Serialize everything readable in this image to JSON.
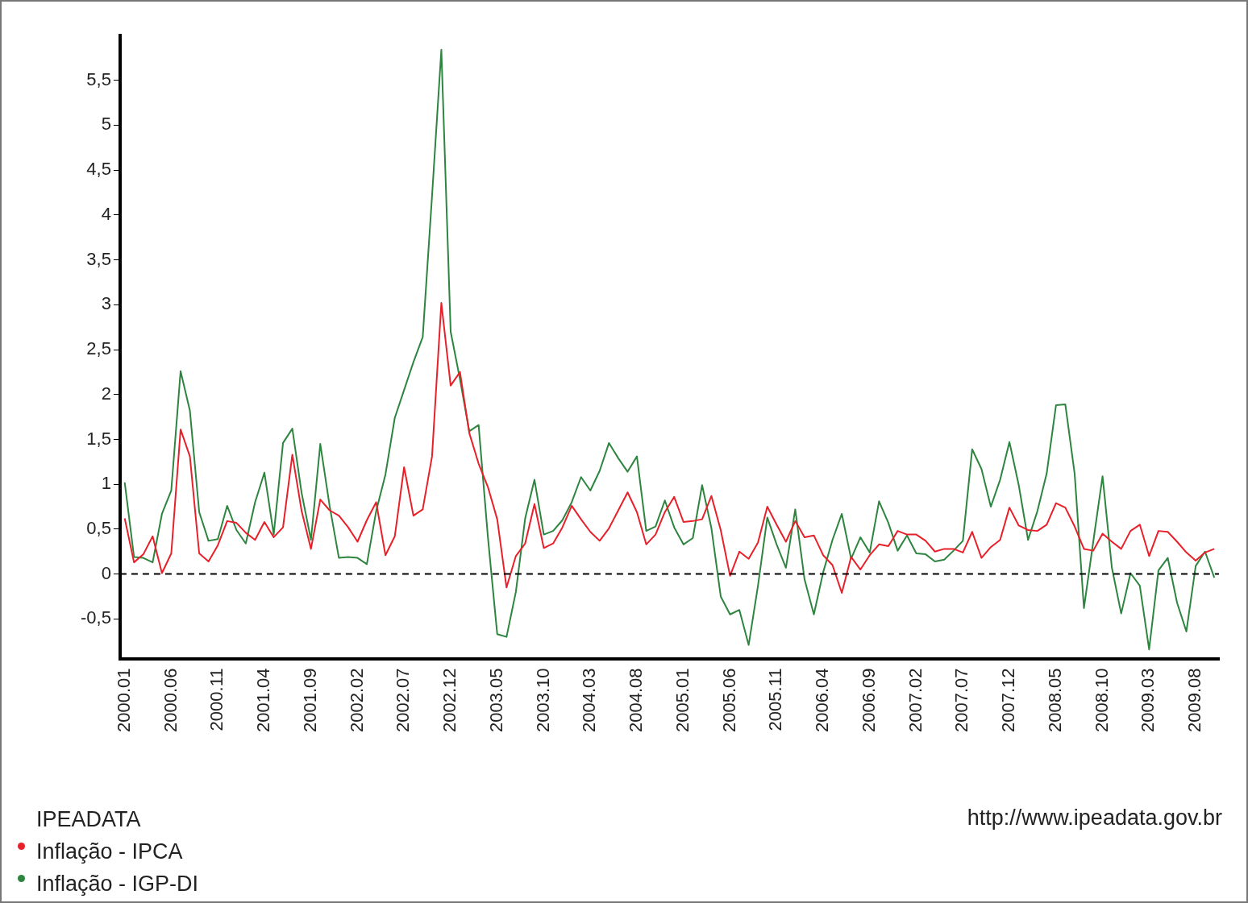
{
  "chart_data": {
    "type": "line",
    "categories": [
      "2000.01",
      null,
      null,
      null,
      null,
      "2000.06",
      null,
      null,
      null,
      null,
      "2000.11",
      null,
      null,
      null,
      null,
      "2001.04",
      null,
      null,
      null,
      null,
      "2001.09",
      null,
      null,
      null,
      null,
      "2002.02",
      null,
      null,
      null,
      null,
      "2002.07",
      null,
      null,
      null,
      null,
      "2002.12",
      null,
      null,
      null,
      null,
      "2003.05",
      null,
      null,
      null,
      null,
      "2003.10",
      null,
      null,
      null,
      null,
      "2004.03",
      null,
      null,
      null,
      null,
      "2004.08",
      null,
      null,
      null,
      null,
      "2005.01",
      null,
      null,
      null,
      null,
      "2005.06",
      null,
      null,
      null,
      null,
      "2005.11",
      null,
      null,
      null,
      null,
      "2006.04",
      null,
      null,
      null,
      null,
      "2006.09",
      null,
      null,
      null,
      null,
      "2007.02",
      null,
      null,
      null,
      null,
      "2007.07",
      null,
      null,
      null,
      null,
      "2007.12",
      null,
      null,
      null,
      null,
      "2008.05",
      null,
      null,
      null,
      null,
      "2008.10",
      null,
      null,
      null,
      null,
      "2009.03",
      null,
      null,
      null,
      null,
      "2009.08",
      null,
      null
    ],
    "series": [
      {
        "name": "Inflação - IPCA",
        "color": "#e8202a",
        "values": [
          0.62,
          0.13,
          0.22,
          0.42,
          0.01,
          0.23,
          1.61,
          1.31,
          0.23,
          0.14,
          0.32,
          0.59,
          0.57,
          0.46,
          0.38,
          0.58,
          0.41,
          0.52,
          1.33,
          0.7,
          0.28,
          0.83,
          0.71,
          0.65,
          0.52,
          0.36,
          0.6,
          0.8,
          0.21,
          0.42,
          1.19,
          0.65,
          0.72,
          1.31,
          3.02,
          2.1,
          2.25,
          1.57,
          1.23,
          0.97,
          0.61,
          -0.15,
          0.2,
          0.34,
          0.78,
          0.29,
          0.34,
          0.52,
          0.76,
          0.61,
          0.47,
          0.37,
          0.51,
          0.71,
          0.91,
          0.69,
          0.33,
          0.44,
          0.69,
          0.86,
          0.58,
          0.59,
          0.61,
          0.87,
          0.49,
          -0.02,
          0.25,
          0.17,
          0.35,
          0.75,
          0.55,
          0.36,
          0.59,
          0.41,
          0.43,
          0.21,
          0.1,
          -0.21,
          0.19,
          0.05,
          0.21,
          0.33,
          0.31,
          0.48,
          0.44,
          0.44,
          0.37,
          0.25,
          0.28,
          0.28,
          0.24,
          0.47,
          0.18,
          0.3,
          0.38,
          0.74,
          0.54,
          0.49,
          0.48,
          0.55,
          0.79,
          0.74,
          0.53,
          0.28,
          0.26,
          0.45,
          0.36,
          0.28,
          0.48,
          0.55,
          0.2,
          0.48,
          0.47,
          0.36,
          0.24,
          0.15,
          0.24,
          0.28
        ]
      },
      {
        "name": "Inflação - IGP-DI",
        "color": "#2e8540",
        "values": [
          1.02,
          0.19,
          0.18,
          0.13,
          0.67,
          0.93,
          2.26,
          1.82,
          0.69,
          0.37,
          0.39,
          0.76,
          0.49,
          0.34,
          0.8,
          1.13,
          0.44,
          1.46,
          1.62,
          0.9,
          0.38,
          1.45,
          0.76,
          0.18,
          0.19,
          0.18,
          0.11,
          0.7,
          1.11,
          1.74,
          2.05,
          2.36,
          2.64,
          4.21,
          5.84,
          2.7,
          2.17,
          1.59,
          1.66,
          0.41,
          -0.67,
          -0.7,
          -0.2,
          0.62,
          1.05,
          0.44,
          0.48,
          0.6,
          0.8,
          1.08,
          0.93,
          1.15,
          1.46,
          1.29,
          1.14,
          1.31,
          0.48,
          0.53,
          0.82,
          0.52,
          0.33,
          0.4,
          0.99,
          0.51,
          -0.25,
          -0.45,
          -0.4,
          -0.79,
          -0.13,
          0.63,
          0.33,
          0.07,
          0.72,
          -0.06,
          -0.45,
          0.02,
          0.38,
          0.67,
          0.17,
          0.41,
          0.24,
          0.81,
          0.57,
          0.26,
          0.43,
          0.23,
          0.22,
          0.14,
          0.16,
          0.26,
          0.37,
          1.39,
          1.17,
          0.75,
          1.05,
          1.47,
          0.99,
          0.38,
          0.7,
          1.12,
          1.88,
          1.89,
          1.12,
          -0.38,
          0.36,
          1.09,
          0.07,
          -0.44,
          0.01,
          -0.13,
          -0.84,
          0.04,
          0.18,
          -0.32,
          -0.64,
          0.09,
          0.25,
          -0.04
        ]
      }
    ],
    "ylim": [
      -0.95,
      6
    ],
    "yticks": [
      {
        "value": -0.5,
        "label": "-0,5"
      },
      0,
      {
        "value": 0.5,
        "label": "0,5"
      },
      1,
      {
        "value": 1.5,
        "label": "1,5"
      },
      2,
      {
        "value": 2.5,
        "label": "2,5"
      },
      3,
      {
        "value": 3.5,
        "label": "3,5"
      },
      4,
      {
        "value": 4.5,
        "label": "4,5"
      },
      5,
      {
        "value": 5.5,
        "label": "5,5"
      }
    ],
    "ref_lines": [
      {
        "axis": "y",
        "value": 0,
        "color": "#000000",
        "line_style": "dashed"
      }
    ],
    "legend": "bottom left",
    "legend_title": "IPEADATA",
    "annotations": [
      "http://www.ipeadata.gov.br"
    ],
    "grid": false
  }
}
